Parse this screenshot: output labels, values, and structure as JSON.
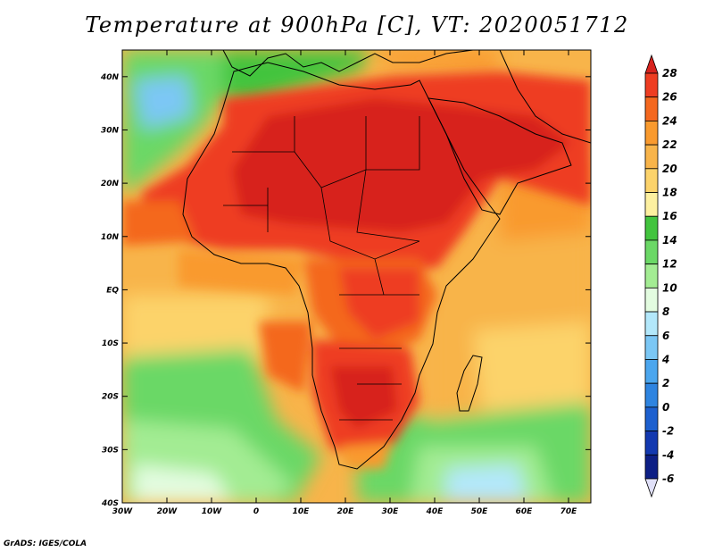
{
  "title": "Temperature at 900hPa [C], VT: 2020051712",
  "credit": "GrADS: IGES/COLA",
  "map": {
    "variable": "Temperature",
    "level": "900hPa",
    "units": "C",
    "valid_time": "2020051712",
    "lon_range": [
      -30,
      75
    ],
    "lat_range": [
      -40,
      45
    ],
    "lon_ticks": [
      {
        "value": -30,
        "label": "30W"
      },
      {
        "value": -20,
        "label": "20W"
      },
      {
        "value": -10,
        "label": "10W"
      },
      {
        "value": 0,
        "label": "0"
      },
      {
        "value": 10,
        "label": "10E"
      },
      {
        "value": 20,
        "label": "20E"
      },
      {
        "value": 30,
        "label": "30E"
      },
      {
        "value": 40,
        "label": "40E"
      },
      {
        "value": 50,
        "label": "50E"
      },
      {
        "value": 60,
        "label": "60E"
      },
      {
        "value": 70,
        "label": "70E"
      }
    ],
    "lat_ticks": [
      {
        "value": 40,
        "label": "40N"
      },
      {
        "value": 30,
        "label": "30N"
      },
      {
        "value": 20,
        "label": "20N"
      },
      {
        "value": 10,
        "label": "10N"
      },
      {
        "value": 0,
        "label": "EQ"
      },
      {
        "value": -10,
        "label": "10S"
      },
      {
        "value": -20,
        "label": "20S"
      },
      {
        "value": -30,
        "label": "30S"
      },
      {
        "value": -40,
        "label": "40S"
      }
    ]
  },
  "colorbar": {
    "levels": [
      28,
      26,
      24,
      22,
      20,
      18,
      16,
      14,
      12,
      10,
      8,
      6,
      4,
      2,
      0,
      -2,
      -4,
      -6
    ],
    "colors": [
      "#d7231e",
      "#ee3d22",
      "#f4681f",
      "#f99a2e",
      "#f8b44a",
      "#fcd36b",
      "#fdf0a0",
      "#42c43e",
      "#6bd866",
      "#a3ec93",
      "#e3fce0",
      "#b3e8fb",
      "#7bc7f5",
      "#4ba6ee",
      "#2e84e0",
      "#1d60cf",
      "#1339b0",
      "#0d1f85",
      "#e0e0f8"
    ]
  }
}
